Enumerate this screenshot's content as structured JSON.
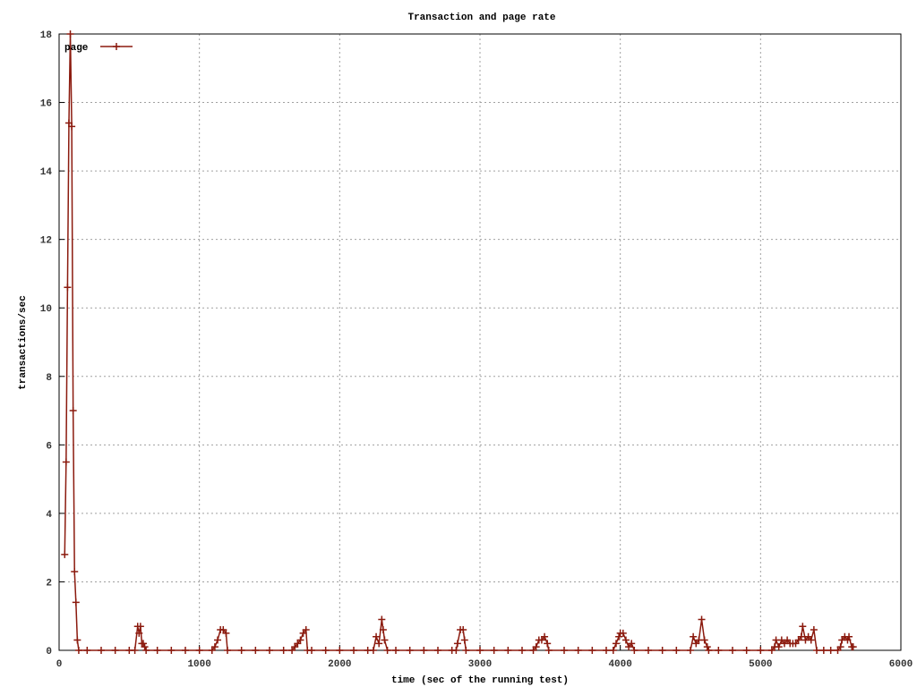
{
  "chart_data": {
    "type": "line",
    "title": "Transaction and page rate",
    "x_label": "time (sec of the running test)",
    "y_label": "transactions/sec",
    "x": [
      40,
      50,
      60,
      70,
      80,
      90,
      100,
      110,
      120,
      130,
      140,
      200,
      300,
      400,
      500,
      540,
      560,
      570,
      580,
      590,
      600,
      610,
      620,
      700,
      800,
      900,
      1000,
      1090,
      1110,
      1130,
      1150,
      1170,
      1190,
      1200,
      1300,
      1400,
      1500,
      1600,
      1660,
      1680,
      1700,
      1720,
      1740,
      1760,
      1770,
      1800,
      1900,
      2000,
      2100,
      2200,
      2240,
      2260,
      2280,
      2300,
      2310,
      2320,
      2340,
      2400,
      2500,
      2600,
      2700,
      2800,
      2830,
      2840,
      2860,
      2880,
      2890,
      2900,
      3000,
      3100,
      3200,
      3300,
      3380,
      3400,
      3420,
      3440,
      3460,
      3480,
      3490,
      3600,
      3700,
      3800,
      3900,
      3950,
      3970,
      3990,
      4000,
      4020,
      4040,
      4060,
      4080,
      4100,
      4200,
      4300,
      4400,
      4500,
      4520,
      4540,
      4560,
      4580,
      4600,
      4620,
      4630,
      4700,
      4800,
      4900,
      5000,
      5080,
      5100,
      5110,
      5130,
      5150,
      5170,
      5190,
      5210,
      5230,
      5250,
      5270,
      5290,
      5300,
      5320,
      5340,
      5360,
      5380,
      5400,
      5450,
      5500,
      5550,
      5570,
      5580,
      5600,
      5620,
      5630,
      5650,
      5660
    ],
    "series": [
      {
        "name": "page",
        "color": "#8b1a0e",
        "values": [
          2.8,
          5.5,
          10.6,
          15.4,
          18,
          15.3,
          7,
          2.3,
          1.4,
          0.3,
          0,
          0,
          0,
          0,
          0,
          0,
          0.7,
          0.5,
          0.7,
          0.2,
          0.2,
          0.1,
          0,
          0,
          0,
          0,
          0,
          0,
          0.1,
          0.3,
          0.6,
          0.6,
          0.5,
          0,
          0,
          0,
          0,
          0,
          0,
          0.1,
          0.2,
          0.3,
          0.5,
          0.6,
          0,
          0,
          0,
          0,
          0,
          0,
          0,
          0.4,
          0.2,
          0.9,
          0.6,
          0.3,
          0,
          0,
          0,
          0,
          0,
          0,
          0,
          0.2,
          0.6,
          0.6,
          0.3,
          0,
          0,
          0,
          0,
          0,
          0,
          0.1,
          0.3,
          0.3,
          0.4,
          0.2,
          0,
          0,
          0,
          0,
          0,
          0,
          0.2,
          0.4,
          0.5,
          0.5,
          0.3,
          0.1,
          0.2,
          0,
          0,
          0,
          0,
          0,
          0.4,
          0.2,
          0.3,
          0.9,
          0.3,
          0.1,
          0,
          0,
          0,
          0,
          0,
          0,
          0.1,
          0.3,
          0.1,
          0.3,
          0.2,
          0.3,
          0.2,
          0.2,
          0.2,
          0.3,
          0.4,
          0.7,
          0.3,
          0.4,
          0.3,
          0.6,
          0,
          0,
          0,
          0,
          0.1,
          0.3,
          0.4,
          0.3,
          0.4,
          0.1,
          0.1
        ]
      }
    ],
    "xlim": [
      0,
      6000
    ],
    "xticks": [
      0,
      1000,
      2000,
      3000,
      4000,
      5000,
      6000
    ],
    "ylim": [
      0,
      18
    ],
    "yticks": [
      0,
      2,
      4,
      6,
      8,
      10,
      12,
      14,
      16,
      18
    ],
    "grid": true,
    "legend": "top-left"
  }
}
